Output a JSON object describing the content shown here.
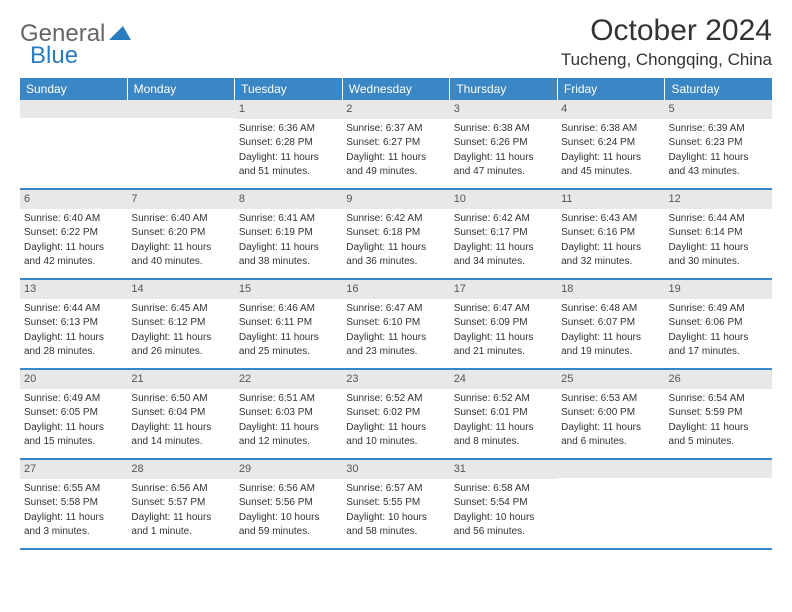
{
  "logo": {
    "text_gray": "General",
    "text_blue": "Blue"
  },
  "title": "October 2024",
  "location": "Tucheng, Chongqing, China",
  "day_headers": [
    "Sunday",
    "Monday",
    "Tuesday",
    "Wednesday",
    "Thursday",
    "Friday",
    "Saturday"
  ],
  "colors": {
    "header_bg": "#3b86c4",
    "day_num_bg": "#e8e8e8",
    "border": "#3b86c4",
    "logo_gray": "#666666",
    "logo_blue": "#2b7bbf"
  },
  "weeks": [
    [
      null,
      null,
      {
        "n": "1",
        "sunrise": "Sunrise: 6:36 AM",
        "sunset": "Sunset: 6:28 PM",
        "daylight1": "Daylight: 11 hours",
        "daylight2": "and 51 minutes."
      },
      {
        "n": "2",
        "sunrise": "Sunrise: 6:37 AM",
        "sunset": "Sunset: 6:27 PM",
        "daylight1": "Daylight: 11 hours",
        "daylight2": "and 49 minutes."
      },
      {
        "n": "3",
        "sunrise": "Sunrise: 6:38 AM",
        "sunset": "Sunset: 6:26 PM",
        "daylight1": "Daylight: 11 hours",
        "daylight2": "and 47 minutes."
      },
      {
        "n": "4",
        "sunrise": "Sunrise: 6:38 AM",
        "sunset": "Sunset: 6:24 PM",
        "daylight1": "Daylight: 11 hours",
        "daylight2": "and 45 minutes."
      },
      {
        "n": "5",
        "sunrise": "Sunrise: 6:39 AM",
        "sunset": "Sunset: 6:23 PM",
        "daylight1": "Daylight: 11 hours",
        "daylight2": "and 43 minutes."
      }
    ],
    [
      {
        "n": "6",
        "sunrise": "Sunrise: 6:40 AM",
        "sunset": "Sunset: 6:22 PM",
        "daylight1": "Daylight: 11 hours",
        "daylight2": "and 42 minutes."
      },
      {
        "n": "7",
        "sunrise": "Sunrise: 6:40 AM",
        "sunset": "Sunset: 6:20 PM",
        "daylight1": "Daylight: 11 hours",
        "daylight2": "and 40 minutes."
      },
      {
        "n": "8",
        "sunrise": "Sunrise: 6:41 AM",
        "sunset": "Sunset: 6:19 PM",
        "daylight1": "Daylight: 11 hours",
        "daylight2": "and 38 minutes."
      },
      {
        "n": "9",
        "sunrise": "Sunrise: 6:42 AM",
        "sunset": "Sunset: 6:18 PM",
        "daylight1": "Daylight: 11 hours",
        "daylight2": "and 36 minutes."
      },
      {
        "n": "10",
        "sunrise": "Sunrise: 6:42 AM",
        "sunset": "Sunset: 6:17 PM",
        "daylight1": "Daylight: 11 hours",
        "daylight2": "and 34 minutes."
      },
      {
        "n": "11",
        "sunrise": "Sunrise: 6:43 AM",
        "sunset": "Sunset: 6:16 PM",
        "daylight1": "Daylight: 11 hours",
        "daylight2": "and 32 minutes."
      },
      {
        "n": "12",
        "sunrise": "Sunrise: 6:44 AM",
        "sunset": "Sunset: 6:14 PM",
        "daylight1": "Daylight: 11 hours",
        "daylight2": "and 30 minutes."
      }
    ],
    [
      {
        "n": "13",
        "sunrise": "Sunrise: 6:44 AM",
        "sunset": "Sunset: 6:13 PM",
        "daylight1": "Daylight: 11 hours",
        "daylight2": "and 28 minutes."
      },
      {
        "n": "14",
        "sunrise": "Sunrise: 6:45 AM",
        "sunset": "Sunset: 6:12 PM",
        "daylight1": "Daylight: 11 hours",
        "daylight2": "and 26 minutes."
      },
      {
        "n": "15",
        "sunrise": "Sunrise: 6:46 AM",
        "sunset": "Sunset: 6:11 PM",
        "daylight1": "Daylight: 11 hours",
        "daylight2": "and 25 minutes."
      },
      {
        "n": "16",
        "sunrise": "Sunrise: 6:47 AM",
        "sunset": "Sunset: 6:10 PM",
        "daylight1": "Daylight: 11 hours",
        "daylight2": "and 23 minutes."
      },
      {
        "n": "17",
        "sunrise": "Sunrise: 6:47 AM",
        "sunset": "Sunset: 6:09 PM",
        "daylight1": "Daylight: 11 hours",
        "daylight2": "and 21 minutes."
      },
      {
        "n": "18",
        "sunrise": "Sunrise: 6:48 AM",
        "sunset": "Sunset: 6:07 PM",
        "daylight1": "Daylight: 11 hours",
        "daylight2": "and 19 minutes."
      },
      {
        "n": "19",
        "sunrise": "Sunrise: 6:49 AM",
        "sunset": "Sunset: 6:06 PM",
        "daylight1": "Daylight: 11 hours",
        "daylight2": "and 17 minutes."
      }
    ],
    [
      {
        "n": "20",
        "sunrise": "Sunrise: 6:49 AM",
        "sunset": "Sunset: 6:05 PM",
        "daylight1": "Daylight: 11 hours",
        "daylight2": "and 15 minutes."
      },
      {
        "n": "21",
        "sunrise": "Sunrise: 6:50 AM",
        "sunset": "Sunset: 6:04 PM",
        "daylight1": "Daylight: 11 hours",
        "daylight2": "and 14 minutes."
      },
      {
        "n": "22",
        "sunrise": "Sunrise: 6:51 AM",
        "sunset": "Sunset: 6:03 PM",
        "daylight1": "Daylight: 11 hours",
        "daylight2": "and 12 minutes."
      },
      {
        "n": "23",
        "sunrise": "Sunrise: 6:52 AM",
        "sunset": "Sunset: 6:02 PM",
        "daylight1": "Daylight: 11 hours",
        "daylight2": "and 10 minutes."
      },
      {
        "n": "24",
        "sunrise": "Sunrise: 6:52 AM",
        "sunset": "Sunset: 6:01 PM",
        "daylight1": "Daylight: 11 hours",
        "daylight2": "and 8 minutes."
      },
      {
        "n": "25",
        "sunrise": "Sunrise: 6:53 AM",
        "sunset": "Sunset: 6:00 PM",
        "daylight1": "Daylight: 11 hours",
        "daylight2": "and 6 minutes."
      },
      {
        "n": "26",
        "sunrise": "Sunrise: 6:54 AM",
        "sunset": "Sunset: 5:59 PM",
        "daylight1": "Daylight: 11 hours",
        "daylight2": "and 5 minutes."
      }
    ],
    [
      {
        "n": "27",
        "sunrise": "Sunrise: 6:55 AM",
        "sunset": "Sunset: 5:58 PM",
        "daylight1": "Daylight: 11 hours",
        "daylight2": "and 3 minutes."
      },
      {
        "n": "28",
        "sunrise": "Sunrise: 6:56 AM",
        "sunset": "Sunset: 5:57 PM",
        "daylight1": "Daylight: 11 hours",
        "daylight2": "and 1 minute."
      },
      {
        "n": "29",
        "sunrise": "Sunrise: 6:56 AM",
        "sunset": "Sunset: 5:56 PM",
        "daylight1": "Daylight: 10 hours",
        "daylight2": "and 59 minutes."
      },
      {
        "n": "30",
        "sunrise": "Sunrise: 6:57 AM",
        "sunset": "Sunset: 5:55 PM",
        "daylight1": "Daylight: 10 hours",
        "daylight2": "and 58 minutes."
      },
      {
        "n": "31",
        "sunrise": "Sunrise: 6:58 AM",
        "sunset": "Sunset: 5:54 PM",
        "daylight1": "Daylight: 10 hours",
        "daylight2": "and 56 minutes."
      },
      null,
      null
    ]
  ]
}
